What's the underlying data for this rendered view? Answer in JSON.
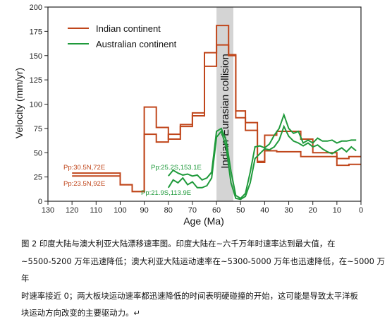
{
  "chart_data": {
    "type": "line",
    "xlabel": "Age (Ma)",
    "ylabel": "Velocity (mm/yr)",
    "xlim": [
      130,
      0
    ],
    "ylim": [
      0,
      200
    ],
    "xticks": [
      130,
      120,
      110,
      100,
      90,
      80,
      70,
      60,
      50,
      40,
      30,
      20,
      10,
      0
    ],
    "yticks": [
      0,
      25,
      50,
      75,
      100,
      125,
      150,
      175,
      200
    ],
    "legend_position": "top-center",
    "legend": [
      "Indian continent",
      "Australian continent"
    ],
    "colors": {
      "indian": "#c0461b",
      "australian": "#1f9a3b",
      "band": "#d4d4d4"
    },
    "band": {
      "x_from": 60,
      "x_to": 53,
      "label": "Indian-Eurasian collision"
    },
    "series": [
      {
        "name": "Indian continent",
        "point_label": "Pp:30.5N,72E",
        "color_key": "indian",
        "x": [
          120,
          100,
          100,
          95,
          95,
          90,
          90,
          85,
          85,
          80,
          80,
          75,
          75,
          70,
          70,
          65,
          65,
          60,
          60,
          55,
          55,
          52,
          52,
          48,
          48,
          43,
          43,
          40,
          40,
          35,
          35,
          25,
          25,
          20,
          20,
          10,
          10,
          5,
          5,
          0
        ],
        "y": [
          29,
          29,
          17,
          17,
          10,
          10,
          97,
          97,
          76,
          76,
          64,
          64,
          79,
          79,
          91,
          91,
          153,
          153,
          181,
          181,
          151,
          151,
          93,
          93,
          73,
          73,
          40,
          40,
          68,
          68,
          72,
          72,
          64,
          64,
          50,
          50,
          44,
          44,
          46,
          46
        ]
      },
      {
        "name": "Indian continent",
        "point_label": "Pp:23.5N,92E",
        "color_key": "indian",
        "x": [
          120,
          100,
          100,
          95,
          95,
          90,
          90,
          85,
          85,
          80,
          80,
          75,
          75,
          70,
          70,
          65,
          65,
          60,
          60,
          55,
          55,
          52,
          52,
          48,
          48,
          43,
          43,
          40,
          40,
          35,
          35,
          25,
          25,
          20,
          20,
          10,
          10,
          5,
          5,
          0
        ],
        "y": [
          26,
          26,
          17,
          17,
          10,
          10,
          69,
          69,
          61,
          61,
          69,
          69,
          77,
          77,
          88,
          88,
          139,
          139,
          161,
          161,
          150,
          150,
          86,
          86,
          81,
          81,
          41,
          41,
          52,
          52,
          51,
          51,
          46,
          46,
          46,
          46,
          37,
          37,
          38,
          38
        ]
      },
      {
        "name": "Australian continent",
        "point_label": "Pp:25.2S,153.1E",
        "color_key": "australian",
        "x": [
          80,
          78,
          76,
          74,
          72,
          70,
          68,
          66,
          64,
          62,
          60,
          58,
          56,
          54,
          52,
          50,
          48,
          46,
          44,
          42,
          40,
          38,
          36,
          34,
          32,
          30,
          28,
          26,
          24,
          22,
          20,
          18,
          16,
          14,
          12,
          10,
          8,
          6,
          4,
          2
        ],
        "y": [
          26,
          32,
          29,
          27,
          28,
          26,
          27,
          22,
          24,
          30,
          72,
          75,
          63,
          31,
          6,
          3,
          8,
          30,
          56,
          57,
          55,
          59,
          68,
          75,
          89,
          75,
          70,
          72,
          60,
          63,
          60,
          65,
          62,
          62,
          63,
          60,
          62,
          62,
          63,
          63
        ]
      },
      {
        "name": "Australian continent",
        "point_label": "Pp:21.9S,113.9E",
        "color_key": "australian",
        "x": [
          80,
          78,
          76,
          74,
          72,
          70,
          68,
          66,
          64,
          62,
          60,
          58,
          56,
          54,
          52,
          50,
          48,
          46,
          44,
          42,
          40,
          38,
          36,
          34,
          32,
          30,
          28,
          26,
          24,
          22,
          20,
          18,
          16,
          14,
          12,
          10,
          8,
          6,
          4,
          2
        ],
        "y": [
          14,
          22,
          19,
          24,
          17,
          20,
          14,
          14,
          16,
          24,
          66,
          72,
          56,
          19,
          3,
          2,
          5,
          19,
          44,
          49,
          54,
          53,
          56,
          63,
          77,
          67,
          62,
          60,
          57,
          60,
          56,
          58,
          54,
          51,
          49,
          52,
          55,
          51,
          56,
          52
        ]
      }
    ]
  },
  "caption": {
    "line1": "图 2  印度大陆与澳大利亚大陆漂移速率图。印度大陆在~六千万年时速率达到最大值，在",
    "line2": "~5500-5200 万年迅速降低；澳大利亚大陆运动速率在~5300-5000 万年也迅速降低，在~5000 万年",
    "line3": "时速率接近 0；两大板块运动速率都迅速降低的时间表明硬碰撞的开始，这可能是导致太平洋板",
    "line4": "块运动方向改变的主要驱动力。↵"
  }
}
